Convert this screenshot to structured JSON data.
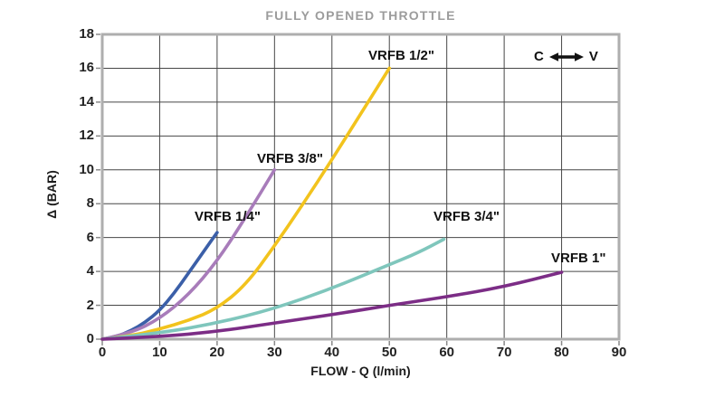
{
  "title": "FULLY OPENED THROTTLE",
  "annotation": {
    "left": "C",
    "right": "V"
  },
  "colors": {
    "title": "#9c9c9c",
    "text": "#1c1c1c",
    "grid": "#474747",
    "border": "#aeaeae",
    "tick": "#8a8a8a"
  },
  "chart_data": {
    "type": "line",
    "title": "FULLY OPENED THROTTLE",
    "xlabel": "FLOW - Q (l/min)",
    "ylabel": "Δ (BAR)",
    "xlim": [
      0,
      90
    ],
    "ylim": [
      0,
      18
    ],
    "x_ticks": [
      0,
      10,
      20,
      30,
      40,
      50,
      60,
      70,
      80,
      90
    ],
    "y_ticks": [
      0,
      2,
      4,
      6,
      8,
      10,
      12,
      14,
      16,
      18
    ],
    "grid": true,
    "legend_position": "inline-labels",
    "series": [
      {
        "name": "VRFB 1/4\"",
        "color": "#3b5fa8",
        "x": [
          0,
          2.5,
          5,
          7.5,
          10,
          12.5,
          15,
          17.5,
          20
        ],
        "y": [
          0,
          0.15,
          0.5,
          1.0,
          1.7,
          2.7,
          3.9,
          5.1,
          6.3
        ]
      },
      {
        "name": "VRFB 3/8\"",
        "color": "#a87cba",
        "x": [
          0,
          5,
          10,
          15,
          20,
          25,
          30
        ],
        "y": [
          0,
          0.35,
          1.2,
          2.6,
          4.6,
          7.2,
          10
        ]
      },
      {
        "name": "VRFB 1/2\"",
        "color": "#f2c31d",
        "x": [
          0,
          5,
          10,
          15,
          20,
          25,
          30,
          35,
          40,
          45,
          50
        ],
        "y": [
          0,
          0.2,
          0.6,
          1.1,
          1.8,
          3.2,
          5.5,
          8.0,
          10.6,
          13.3,
          16
        ]
      },
      {
        "name": "VRFB 3/4\"",
        "color": "#7fc6bc",
        "x": [
          0,
          10,
          20,
          30,
          40,
          50,
          55,
          59.5
        ],
        "y": [
          0,
          0.35,
          0.95,
          1.8,
          3.0,
          4.4,
          5.1,
          5.9
        ]
      },
      {
        "name": "VRFB 1\"",
        "color": "#7c2d86",
        "x": [
          0,
          10,
          20,
          30,
          40,
          50,
          60,
          70,
          80
        ],
        "y": [
          0,
          0.15,
          0.45,
          0.95,
          1.45,
          2.0,
          2.5,
          3.1,
          3.95
        ]
      }
    ]
  }
}
